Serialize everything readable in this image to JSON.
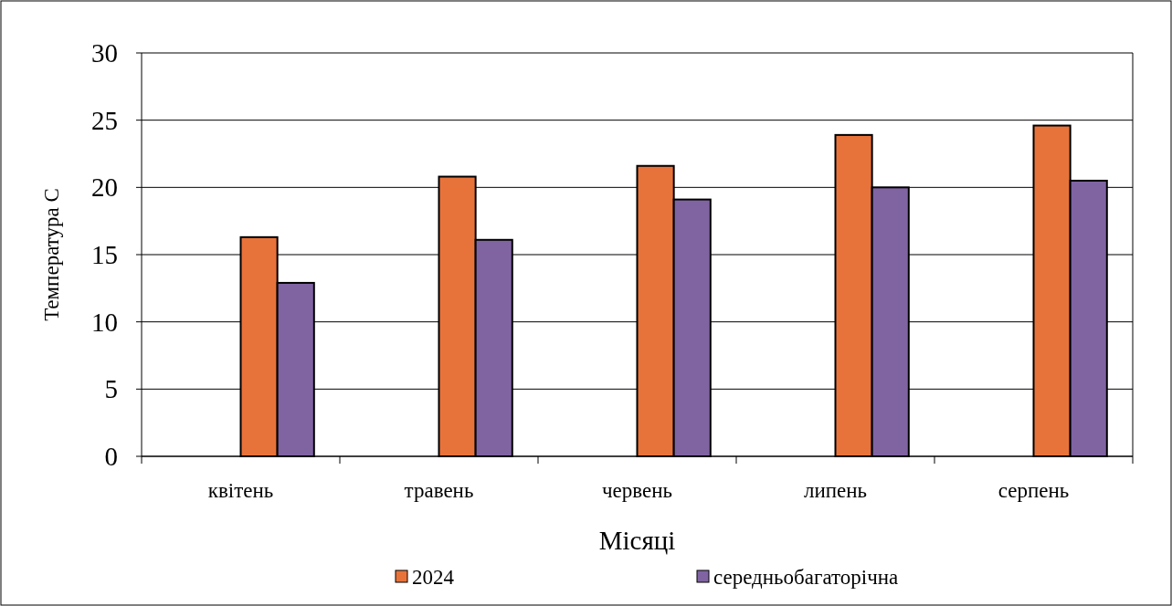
{
  "chart_data": {
    "type": "bar",
    "xlabel": "Місяці",
    "ylabel": "Температура С",
    "categories": [
      "квітень",
      "травень",
      "червень",
      "липень",
      "серпень"
    ],
    "series": [
      {
        "name": "2024",
        "color": "#e8733a",
        "values": [
          16.3,
          20.8,
          21.6,
          23.9,
          24.6
        ]
      },
      {
        "name": "середньобагаторічна",
        "color": "#8064a2",
        "values": [
          12.9,
          16.1,
          19.1,
          20.0,
          20.5
        ]
      }
    ],
    "ylim": [
      0,
      30
    ],
    "yticks": [
      0,
      5,
      10,
      15,
      20,
      25,
      30
    ],
    "grid": "y",
    "legend": "bottom"
  }
}
